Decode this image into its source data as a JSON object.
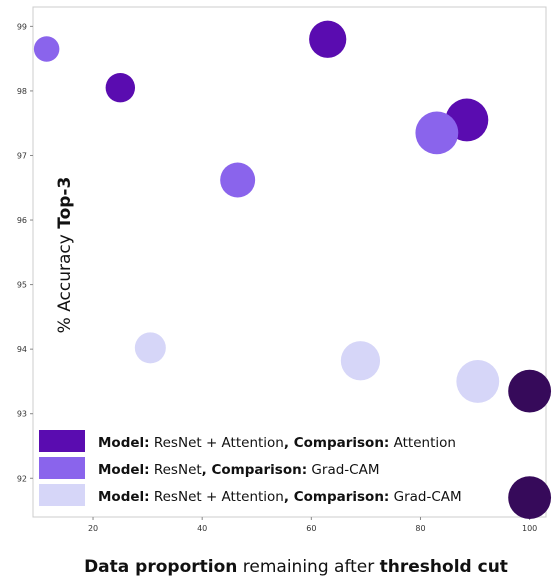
{
  "chart_data": {
    "type": "scatter",
    "xlabel_bold_1": "Data proportion",
    "xlabel_plain": " remaining after ",
    "xlabel_bold_2": "threshold cut",
    "ylabel_plain": "% Accuracy ",
    "ylabel_bold": "Top-3",
    "xlim": [
      9,
      103
    ],
    "ylim": [
      91.4,
      99.3
    ],
    "x_ticks": [
      "20",
      "40",
      "60",
      "80",
      "100"
    ],
    "x_tick_values": [
      20,
      40,
      60,
      80,
      100
    ],
    "y_ticks": [
      "92",
      "93",
      "94",
      "95",
      "96",
      "97",
      "98",
      "99"
    ],
    "y_tick_values": [
      92,
      93,
      94,
      95,
      96,
      97,
      98,
      99
    ],
    "grid": false,
    "legend_placement": "bottom-left",
    "series": [
      {
        "color": "#5a0cb0",
        "legend": {
          "model_key": "Model:",
          "model_val": " ResNet + Attention",
          "comp_key": ", Comparison:",
          "comp_val": " Attention"
        },
        "points": [
          {
            "x": 25,
            "y": 98.05,
            "size": 0.2
          },
          {
            "x": 63,
            "y": 98.8,
            "size": 0.5
          },
          {
            "x": 88.5,
            "y": 97.55,
            "size": 0.8
          }
        ]
      },
      {
        "color": "#8a64ec",
        "legend": {
          "model_key": "Model:",
          "model_val": " ResNet",
          "comp_key": ", Comparison:",
          "comp_val": " Grad-CAM"
        },
        "points": [
          {
            "x": 11.5,
            "y": 98.65,
            "size": 0.1
          },
          {
            "x": 46.5,
            "y": 96.62,
            "size": 0.4
          },
          {
            "x": 83,
            "y": 97.35,
            "size": 0.8
          }
        ]
      },
      {
        "color": "#d6d6f8",
        "legend": {
          "model_key": "Model:",
          "model_val": " ResNet + Attention",
          "comp_key": ", Comparison:",
          "comp_val": " Grad-CAM"
        },
        "points": [
          {
            "x": 30.5,
            "y": 94.02,
            "size": 0.25
          },
          {
            "x": 69,
            "y": 93.82,
            "size": 0.6
          },
          {
            "x": 90.5,
            "y": 93.5,
            "size": 0.8
          }
        ]
      },
      {
        "color": "#360a5a",
        "points": [
          {
            "x": 100,
            "y": 93.35,
            "size": 0.8
          },
          {
            "x": 100,
            "y": 91.7,
            "size": 0.8
          }
        ]
      }
    ]
  }
}
